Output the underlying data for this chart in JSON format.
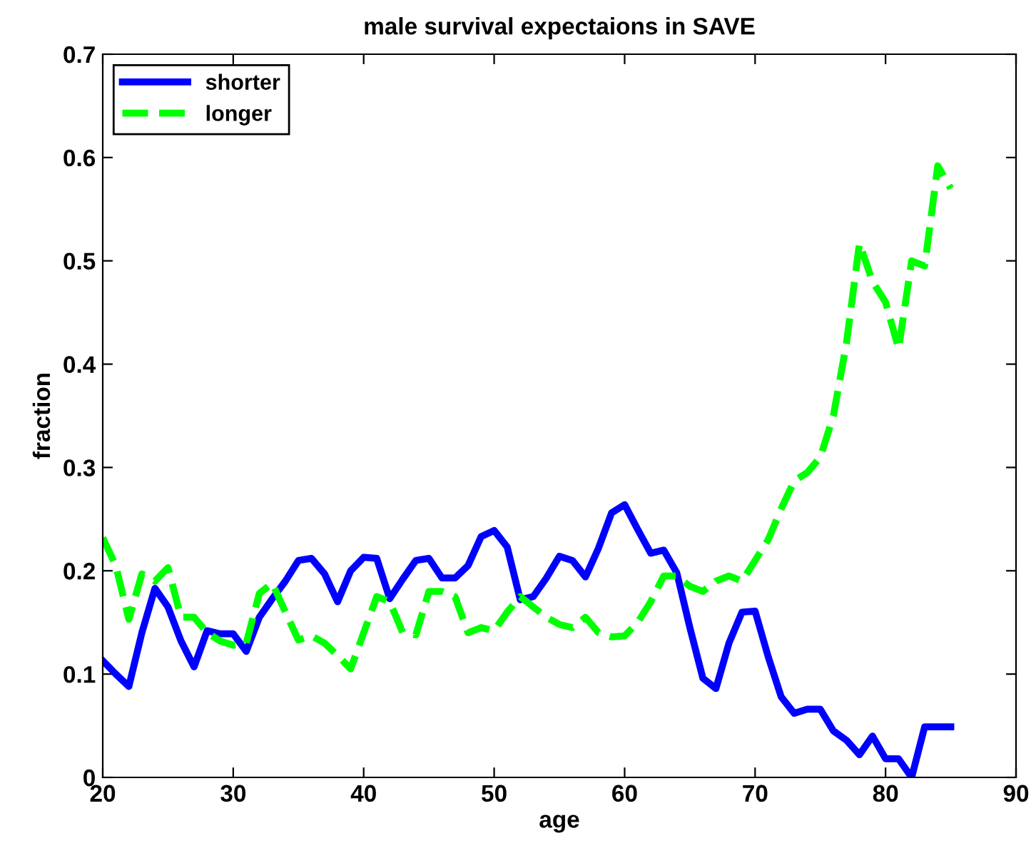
{
  "chart_data": {
    "type": "line",
    "title": "male survival expectaions in SAVE",
    "xlabel": "age",
    "ylabel": "fraction",
    "x": [
      20,
      21,
      22,
      23,
      24,
      25,
      26,
      27,
      28,
      29,
      30,
      31,
      32,
      33,
      34,
      35,
      36,
      37,
      38,
      39,
      40,
      41,
      42,
      43,
      44,
      45,
      46,
      47,
      48,
      49,
      50,
      51,
      52,
      53,
      54,
      55,
      56,
      57,
      58,
      59,
      60,
      61,
      62,
      63,
      64,
      65,
      66,
      67,
      68,
      69,
      70,
      71,
      72,
      73,
      74,
      75,
      76,
      77,
      78,
      79,
      80,
      81,
      82,
      83,
      84,
      85
    ],
    "series": [
      {
        "name": "shorter",
        "color": "#0000ff",
        "line_style": "solid",
        "values": [
          0.113,
          0.1,
          0.088,
          0.14,
          0.183,
          0.165,
          0.132,
          0.107,
          0.142,
          0.139,
          0.139,
          0.122,
          0.155,
          0.173,
          0.19,
          0.21,
          0.212,
          0.197,
          0.17,
          0.2,
          0.213,
          0.212,
          0.173,
          0.192,
          0.21,
          0.212,
          0.193,
          0.193,
          0.205,
          0.233,
          0.239,
          0.223,
          0.172,
          0.175,
          0.193,
          0.214,
          0.21,
          0.194,
          0.222,
          0.256,
          0.264,
          0.24,
          0.217,
          0.22,
          0.198,
          0.145,
          0.096,
          0.086,
          0.13,
          0.16,
          0.161,
          0.117,
          0.078,
          0.062,
          0.066,
          0.066,
          0.045,
          0.036,
          0.022,
          0.04,
          0.018,
          0.018,
          0.0,
          0.049,
          0.049,
          0.049
        ]
      },
      {
        "name": "longer",
        "color": "#00ff00",
        "line_style": "dashed",
        "values": [
          0.232,
          0.205,
          0.153,
          0.197,
          0.19,
          0.203,
          0.155,
          0.155,
          0.14,
          0.132,
          0.128,
          0.13,
          0.178,
          0.188,
          0.16,
          0.133,
          0.137,
          0.13,
          0.118,
          0.105,
          0.14,
          0.175,
          0.17,
          0.14,
          0.138,
          0.18,
          0.18,
          0.175,
          0.14,
          0.145,
          0.142,
          0.16,
          0.175,
          0.165,
          0.155,
          0.148,
          0.145,
          0.155,
          0.14,
          0.136,
          0.137,
          0.15,
          0.17,
          0.195,
          0.195,
          0.185,
          0.18,
          0.19,
          0.195,
          0.19,
          0.21,
          0.23,
          0.26,
          0.287,
          0.295,
          0.31,
          0.35,
          0.42,
          0.517,
          0.48,
          0.46,
          0.415,
          0.5,
          0.495,
          0.592,
          0.57
        ]
      }
    ],
    "xlim": [
      20,
      90
    ],
    "xticks": [
      20,
      30,
      40,
      50,
      60,
      70,
      80,
      90
    ],
    "ylim": [
      0,
      0.7
    ],
    "yticks": [
      0,
      0.1,
      0.2,
      0.3,
      0.4,
      0.5,
      0.6,
      0.7
    ],
    "grid": false,
    "legend": "top left",
    "marker": "none"
  }
}
